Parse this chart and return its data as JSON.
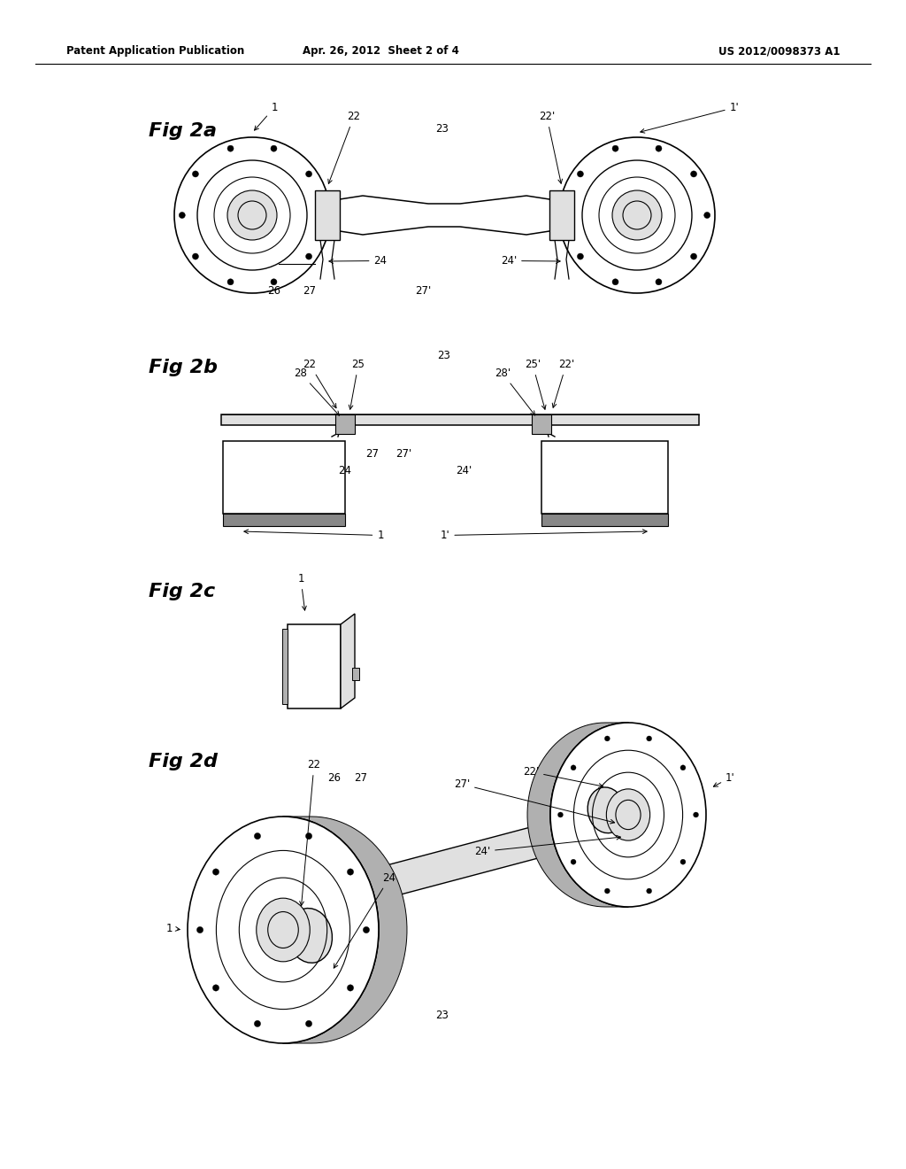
{
  "background_color": "#ffffff",
  "header_left": "Patent Application Publication",
  "header_center": "Apr. 26, 2012  Sheet 2 of 4",
  "header_right": "US 2012/0098373 A1",
  "fig2a_label": "Fig 2a",
  "fig2b_label": "Fig 2b",
  "fig2c_label": "Fig 2c",
  "fig2d_label": "Fig 2d",
  "line_color": "#000000",
  "gray_light": "#e0e0e0",
  "gray_mid": "#b0b0b0",
  "gray_dark": "#888888"
}
